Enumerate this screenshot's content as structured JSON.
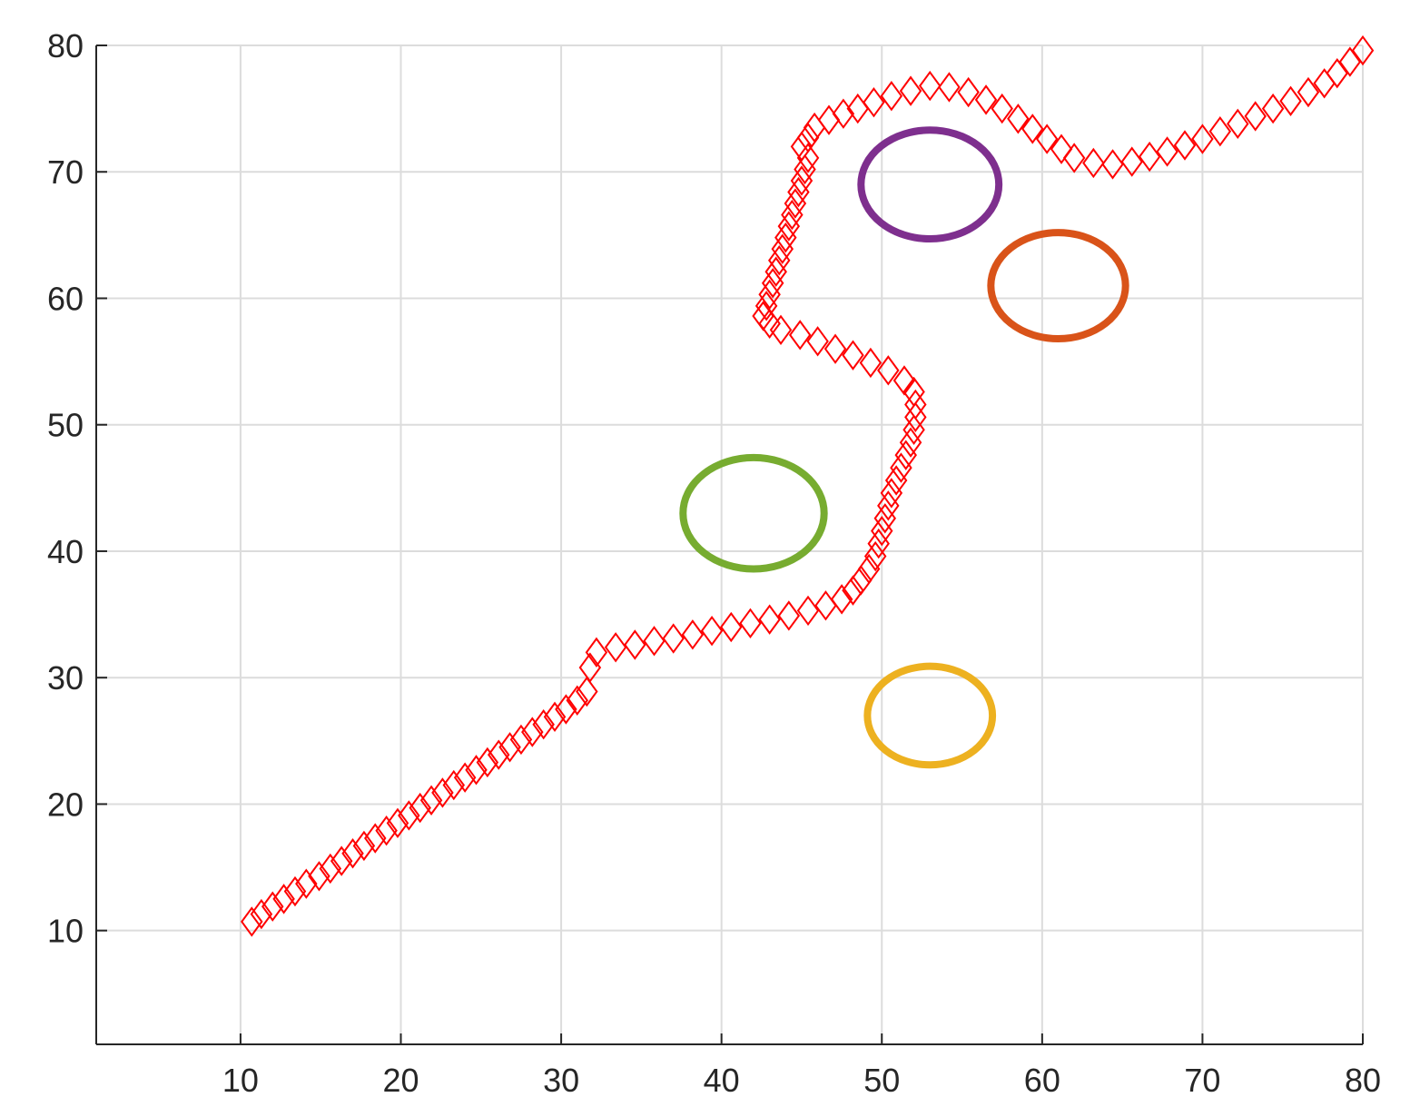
{
  "chart_data": {
    "type": "scatter",
    "title": "",
    "xlabel": "",
    "ylabel": "",
    "xlim": [
      1,
      80
    ],
    "ylim": [
      1,
      80
    ],
    "grid": true,
    "x_ticks": [
      10,
      20,
      30,
      40,
      50,
      60,
      70,
      80
    ],
    "y_ticks": [
      10,
      20,
      30,
      40,
      50,
      60,
      70,
      80
    ],
    "path": {
      "marker": "diamond",
      "color": "#ff0000",
      "points": [
        [
          10.7,
          10.7
        ],
        [
          11.3,
          11.3
        ],
        [
          12.0,
          11.9
        ],
        [
          12.7,
          12.5
        ],
        [
          13.4,
          13.1
        ],
        [
          14.1,
          13.7
        ],
        [
          14.9,
          14.3
        ],
        [
          15.6,
          14.9
        ],
        [
          16.3,
          15.5
        ],
        [
          17.0,
          16.1
        ],
        [
          17.7,
          16.7
        ],
        [
          18.4,
          17.3
        ],
        [
          19.1,
          17.9
        ],
        [
          19.8,
          18.5
        ],
        [
          20.5,
          19.1
        ],
        [
          21.2,
          19.7
        ],
        [
          21.9,
          20.3
        ],
        [
          22.6,
          20.9
        ],
        [
          23.3,
          21.5
        ],
        [
          24.0,
          22.1
        ],
        [
          24.7,
          22.7
        ],
        [
          25.4,
          23.3
        ],
        [
          26.1,
          23.9
        ],
        [
          26.8,
          24.5
        ],
        [
          27.5,
          25.1
        ],
        [
          28.2,
          25.7
        ],
        [
          28.9,
          26.3
        ],
        [
          29.6,
          26.9
        ],
        [
          30.3,
          27.5
        ],
        [
          31.0,
          28.2
        ],
        [
          31.6,
          28.9
        ],
        [
          31.8,
          30.8
        ],
        [
          32.2,
          32.0
        ],
        [
          33.4,
          32.4
        ],
        [
          34.6,
          32.6
        ],
        [
          35.8,
          32.9
        ],
        [
          37.0,
          33.1
        ],
        [
          38.2,
          33.4
        ],
        [
          39.4,
          33.7
        ],
        [
          40.6,
          34.0
        ],
        [
          41.8,
          34.3
        ],
        [
          43.0,
          34.6
        ],
        [
          44.2,
          34.9
        ],
        [
          45.4,
          35.3
        ],
        [
          46.5,
          35.7
        ],
        [
          47.5,
          36.2
        ],
        [
          48.2,
          36.9
        ],
        [
          48.7,
          37.7
        ],
        [
          49.2,
          38.6
        ],
        [
          49.6,
          39.6
        ],
        [
          49.8,
          40.6
        ],
        [
          50.0,
          41.6
        ],
        [
          50.2,
          42.6
        ],
        [
          50.4,
          43.6
        ],
        [
          50.6,
          44.6
        ],
        [
          50.9,
          45.6
        ],
        [
          51.2,
          46.6
        ],
        [
          51.5,
          47.6
        ],
        [
          51.8,
          48.6
        ],
        [
          52.0,
          49.6
        ],
        [
          52.1,
          50.6
        ],
        [
          52.1,
          51.6
        ],
        [
          52.0,
          52.6
        ],
        [
          51.4,
          53.5
        ],
        [
          50.4,
          54.3
        ],
        [
          49.3,
          54.9
        ],
        [
          48.2,
          55.5
        ],
        [
          47.1,
          56.0
        ],
        [
          46.0,
          56.6
        ],
        [
          44.9,
          57.1
        ],
        [
          43.7,
          57.5
        ],
        [
          43.0,
          58.0
        ],
        [
          42.6,
          58.6
        ],
        [
          42.8,
          59.4
        ],
        [
          43.0,
          60.3
        ],
        [
          43.2,
          61.2
        ],
        [
          43.4,
          62.1
        ],
        [
          43.6,
          63.0
        ],
        [
          43.8,
          63.9
        ],
        [
          44.0,
          64.8
        ],
        [
          44.2,
          65.7
        ],
        [
          44.4,
          66.6
        ],
        [
          44.6,
          67.5
        ],
        [
          44.8,
          68.4
        ],
        [
          45.0,
          69.3
        ],
        [
          45.2,
          70.2
        ],
        [
          45.4,
          71.1
        ],
        [
          45.0,
          72.0
        ],
        [
          45.4,
          72.7
        ],
        [
          45.8,
          73.5
        ],
        [
          46.7,
          74.1
        ],
        [
          47.6,
          74.6
        ],
        [
          48.5,
          75.0
        ],
        [
          49.5,
          75.5
        ],
        [
          50.6,
          76.0
        ],
        [
          51.8,
          76.4
        ],
        [
          53.0,
          76.8
        ],
        [
          54.2,
          76.7
        ],
        [
          55.4,
          76.3
        ],
        [
          56.5,
          75.7
        ],
        [
          57.5,
          75.0
        ],
        [
          58.5,
          74.2
        ],
        [
          59.4,
          73.4
        ],
        [
          60.3,
          72.6
        ],
        [
          61.2,
          71.8
        ],
        [
          62.0,
          71.1
        ],
        [
          63.2,
          70.7
        ],
        [
          64.4,
          70.6
        ],
        [
          65.6,
          70.8
        ],
        [
          66.7,
          71.2
        ],
        [
          67.8,
          71.6
        ],
        [
          68.9,
          72.1
        ],
        [
          70.0,
          72.6
        ],
        [
          71.1,
          73.2
        ],
        [
          72.2,
          73.8
        ],
        [
          73.3,
          74.4
        ],
        [
          74.4,
          75.0
        ],
        [
          75.5,
          75.6
        ],
        [
          76.6,
          76.3
        ],
        [
          77.6,
          77.0
        ],
        [
          78.4,
          77.8
        ],
        [
          79.2,
          78.7
        ],
        [
          80.0,
          79.6
        ]
      ]
    },
    "circles": [
      {
        "cx": 42,
        "cy": 43,
        "rx": 4.4,
        "ry": 4.4,
        "color": "#77ac30"
      },
      {
        "cx": 53,
        "cy": 69,
        "rx": 4.3,
        "ry": 4.3,
        "color": "#7e2f8e"
      },
      {
        "cx": 61,
        "cy": 61,
        "rx": 4.2,
        "ry": 4.2,
        "color": "#d95319"
      },
      {
        "cx": 53,
        "cy": 27,
        "rx": 3.9,
        "ry": 3.9,
        "color": "#edb120"
      }
    ]
  }
}
